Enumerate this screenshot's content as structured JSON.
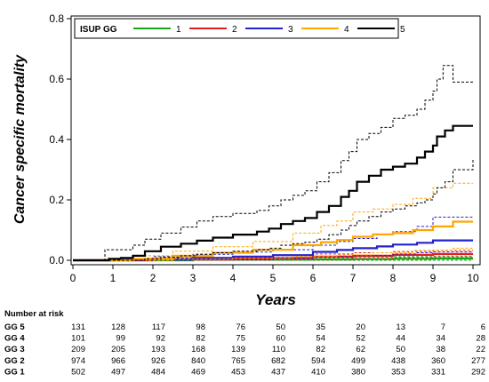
{
  "chart_data": {
    "type": "line",
    "xlabel": "Years",
    "ylabel": "Cancer specific mortality",
    "xlim": [
      0,
      10
    ],
    "ylim": [
      0,
      0.8
    ],
    "x_ticks": [
      0,
      1,
      2,
      3,
      4,
      5,
      6,
      7,
      8,
      9,
      10
    ],
    "y_ticks": [
      0.0,
      0.2,
      0.4,
      0.6,
      0.8
    ],
    "y_tick_labels": [
      "0.0",
      "0.2",
      "0.4",
      "0.6",
      "0.8"
    ],
    "legend": {
      "title": "ISUP GG",
      "placement": "top"
    },
    "series": [
      {
        "name": "1",
        "color": "#1aa41a",
        "steps": [
          [
            0,
            0
          ],
          [
            3,
            0.002
          ],
          [
            6,
            0.003
          ],
          [
            7,
            0.004
          ],
          [
            8,
            0.005
          ],
          [
            9,
            0.006
          ],
          [
            10,
            0.006
          ]
        ],
        "upper": [
          [
            0,
            0
          ],
          [
            3,
            0.006
          ],
          [
            6,
            0.008
          ],
          [
            7,
            0.01
          ],
          [
            8,
            0.012
          ],
          [
            9,
            0.014
          ],
          [
            10,
            0.014
          ]
        ],
        "lower": [
          [
            0,
            0
          ],
          [
            10,
            0.001
          ]
        ]
      },
      {
        "name": "2",
        "color": "#e02020",
        "steps": [
          [
            0,
            0
          ],
          [
            2,
            0.003
          ],
          [
            4,
            0.006
          ],
          [
            5,
            0.008
          ],
          [
            6,
            0.012
          ],
          [
            7,
            0.015
          ],
          [
            8,
            0.018
          ],
          [
            9,
            0.021
          ],
          [
            10,
            0.021
          ]
        ],
        "upper": [
          [
            0,
            0
          ],
          [
            2,
            0.008
          ],
          [
            4,
            0.013
          ],
          [
            5,
            0.016
          ],
          [
            6,
            0.021
          ],
          [
            7,
            0.025
          ],
          [
            8,
            0.029
          ],
          [
            9,
            0.033
          ],
          [
            10,
            0.033
          ]
        ],
        "lower": [
          [
            0,
            0
          ],
          [
            3,
            0.001
          ],
          [
            5,
            0.003
          ],
          [
            7,
            0.006
          ],
          [
            8,
            0.009
          ],
          [
            9,
            0.011
          ],
          [
            10,
            0.011
          ]
        ]
      },
      {
        "name": "3",
        "color": "#2222cc",
        "steps": [
          [
            0,
            0
          ],
          [
            1,
            0.002
          ],
          [
            2,
            0.004
          ],
          [
            3,
            0.008
          ],
          [
            4,
            0.012
          ],
          [
            5,
            0.017
          ],
          [
            6,
            0.028
          ],
          [
            6.6,
            0.034
          ],
          [
            7,
            0.04
          ],
          [
            7.6,
            0.046
          ],
          [
            8,
            0.052
          ],
          [
            8.6,
            0.058
          ],
          [
            9,
            0.066
          ],
          [
            10,
            0.066
          ]
        ],
        "upper": [
          [
            0,
            0
          ],
          [
            1,
            0.006
          ],
          [
            2,
            0.012
          ],
          [
            3,
            0.02
          ],
          [
            4,
            0.027
          ],
          [
            5,
            0.035
          ],
          [
            6,
            0.05
          ],
          [
            6.6,
            0.062
          ],
          [
            7,
            0.072
          ],
          [
            7.6,
            0.085
          ],
          [
            8,
            0.095
          ],
          [
            8.6,
            0.112
          ],
          [
            9,
            0.143
          ],
          [
            10,
            0.143
          ]
        ],
        "lower": [
          [
            0,
            0
          ],
          [
            3,
            0.002
          ],
          [
            5,
            0.006
          ],
          [
            6,
            0.011
          ],
          [
            7,
            0.016
          ],
          [
            8,
            0.021
          ],
          [
            8.6,
            0.025
          ],
          [
            9,
            0.028
          ],
          [
            10,
            0.028
          ]
        ]
      },
      {
        "name": "4",
        "color": "#ffa500",
        "steps": [
          [
            0,
            0
          ],
          [
            1.5,
            0.005
          ],
          [
            2.5,
            0.015
          ],
          [
            3.5,
            0.025
          ],
          [
            4.5,
            0.035
          ],
          [
            5.5,
            0.05
          ],
          [
            6.2,
            0.06
          ],
          [
            6.6,
            0.067
          ],
          [
            7,
            0.078
          ],
          [
            7.5,
            0.086
          ],
          [
            8,
            0.09
          ],
          [
            8.5,
            0.1
          ],
          [
            9,
            0.112
          ],
          [
            9.5,
            0.128
          ],
          [
            10,
            0.128
          ]
        ],
        "upper": [
          [
            0,
            0
          ],
          [
            1.5,
            0.015
          ],
          [
            2.5,
            0.03
          ],
          [
            3.5,
            0.045
          ],
          [
            4.5,
            0.062
          ],
          [
            5.5,
            0.09
          ],
          [
            6.2,
            0.115
          ],
          [
            6.6,
            0.13
          ],
          [
            7,
            0.16
          ],
          [
            7.5,
            0.17
          ],
          [
            8,
            0.185
          ],
          [
            8.5,
            0.205
          ],
          [
            9,
            0.24
          ],
          [
            9.5,
            0.255
          ],
          [
            10,
            0.255
          ]
        ],
        "lower": [
          [
            0,
            0
          ],
          [
            2.5,
            0.004
          ],
          [
            4,
            0.008
          ],
          [
            5.5,
            0.013
          ],
          [
            6.6,
            0.018
          ],
          [
            7.5,
            0.025
          ],
          [
            8.5,
            0.033
          ],
          [
            9.5,
            0.04
          ],
          [
            10,
            0.04
          ]
        ]
      },
      {
        "name": "5",
        "color": "#000000",
        "steps": [
          [
            0,
            0
          ],
          [
            0.9,
            0.005
          ],
          [
            1.2,
            0.008
          ],
          [
            1.5,
            0.015
          ],
          [
            1.8,
            0.03
          ],
          [
            2.2,
            0.045
          ],
          [
            2.7,
            0.055
          ],
          [
            3.1,
            0.065
          ],
          [
            3.5,
            0.075
          ],
          [
            4,
            0.085
          ],
          [
            4.6,
            0.095
          ],
          [
            4.9,
            0.105
          ],
          [
            5.2,
            0.12
          ],
          [
            5.5,
            0.13
          ],
          [
            5.8,
            0.14
          ],
          [
            6.1,
            0.16
          ],
          [
            6.4,
            0.18
          ],
          [
            6.7,
            0.21
          ],
          [
            6.9,
            0.23
          ],
          [
            7.1,
            0.26
          ],
          [
            7.4,
            0.28
          ],
          [
            7.7,
            0.3
          ],
          [
            8.0,
            0.31
          ],
          [
            8.3,
            0.32
          ],
          [
            8.6,
            0.34
          ],
          [
            8.8,
            0.36
          ],
          [
            9.0,
            0.38
          ],
          [
            9.1,
            0.41
          ],
          [
            9.3,
            0.43
          ],
          [
            9.5,
            0.445
          ],
          [
            10,
            0.445
          ]
        ],
        "upper": [
          [
            0,
            0
          ],
          [
            0.8,
            0.035
          ],
          [
            1.5,
            0.05
          ],
          [
            1.8,
            0.07
          ],
          [
            2.2,
            0.09
          ],
          [
            2.7,
            0.11
          ],
          [
            3.1,
            0.13
          ],
          [
            3.5,
            0.145
          ],
          [
            4,
            0.155
          ],
          [
            4.6,
            0.165
          ],
          [
            4.9,
            0.18
          ],
          [
            5.2,
            0.2
          ],
          [
            5.5,
            0.215
          ],
          [
            5.8,
            0.23
          ],
          [
            6.1,
            0.26
          ],
          [
            6.4,
            0.29
          ],
          [
            6.7,
            0.33
          ],
          [
            6.9,
            0.36
          ],
          [
            7.1,
            0.4
          ],
          [
            7.4,
            0.42
          ],
          [
            7.7,
            0.44
          ],
          [
            8.0,
            0.47
          ],
          [
            8.3,
            0.48
          ],
          [
            8.6,
            0.5
          ],
          [
            8.8,
            0.53
          ],
          [
            9.0,
            0.56
          ],
          [
            9.1,
            0.6
          ],
          [
            9.25,
            0.645
          ],
          [
            9.5,
            0.59
          ],
          [
            10,
            0.59
          ]
        ],
        "lower": [
          [
            0,
            0
          ],
          [
            1.8,
            0.005
          ],
          [
            2.2,
            0.01
          ],
          [
            2.7,
            0.015
          ],
          [
            3.1,
            0.02
          ],
          [
            3.5,
            0.025
          ],
          [
            4,
            0.03
          ],
          [
            4.6,
            0.035
          ],
          [
            4.9,
            0.04
          ],
          [
            5.2,
            0.05
          ],
          [
            5.5,
            0.055
          ],
          [
            5.8,
            0.06
          ],
          [
            6.1,
            0.07
          ],
          [
            6.4,
            0.085
          ],
          [
            6.7,
            0.1
          ],
          [
            6.9,
            0.115
          ],
          [
            7.1,
            0.13
          ],
          [
            7.4,
            0.145
          ],
          [
            7.7,
            0.16
          ],
          [
            8.0,
            0.17
          ],
          [
            8.3,
            0.18
          ],
          [
            8.6,
            0.19
          ],
          [
            8.8,
            0.2
          ],
          [
            9.0,
            0.22
          ],
          [
            9.1,
            0.24
          ],
          [
            9.3,
            0.26
          ],
          [
            9.5,
            0.3
          ],
          [
            10,
            0.335
          ]
        ]
      }
    ]
  },
  "risk_table": {
    "title": "Number at risk",
    "rows": [
      {
        "label": "GG 5",
        "values": [
          "131",
          "128",
          "117",
          "98",
          "76",
          "50",
          "35",
          "20",
          "13",
          "7",
          "6"
        ]
      },
      {
        "label": "GG 4",
        "values": [
          "101",
          "99",
          "92",
          "82",
          "75",
          "60",
          "54",
          "52",
          "44",
          "34",
          "28"
        ]
      },
      {
        "label": "GG 3",
        "values": [
          "209",
          "205",
          "193",
          "168",
          "139",
          "110",
          "82",
          "62",
          "50",
          "38",
          "22"
        ]
      },
      {
        "label": "GG 2",
        "values": [
          "974",
          "966",
          "926",
          "840",
          "765",
          "682",
          "594",
          "499",
          "438",
          "360",
          "277"
        ]
      },
      {
        "label": "GG 1",
        "values": [
          "502",
          "497",
          "484",
          "469",
          "453",
          "437",
          "410",
          "380",
          "353",
          "331",
          "292"
        ]
      }
    ]
  }
}
